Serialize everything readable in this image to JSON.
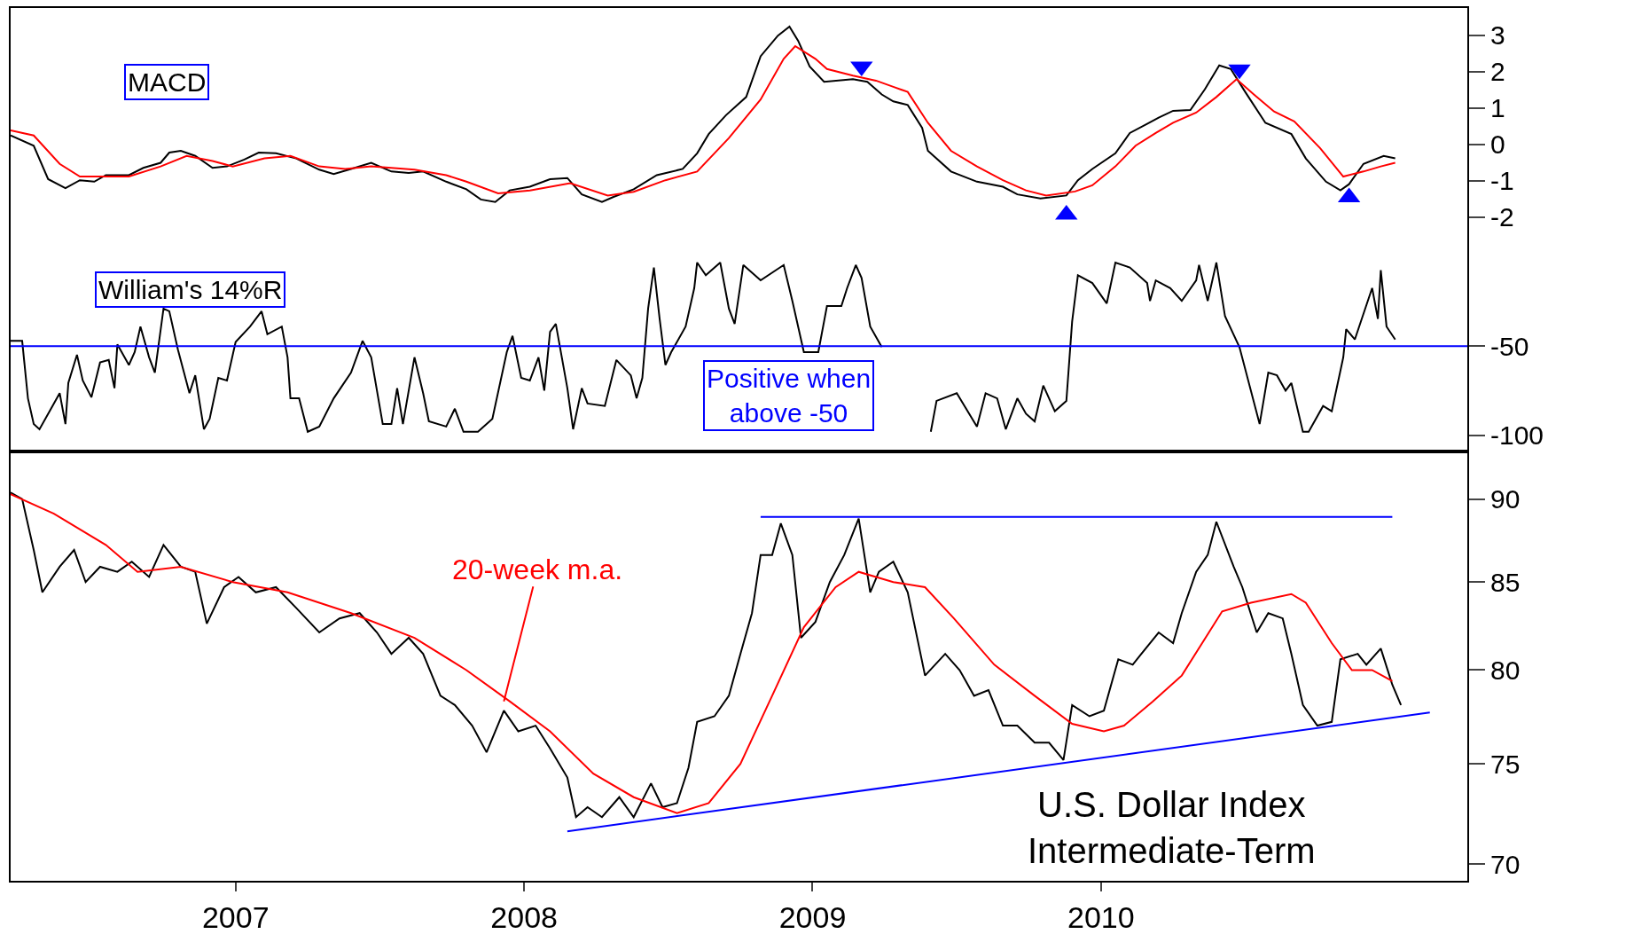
{
  "chart_data": [
    {
      "type": "line",
      "tick_labels": "y",
      "xlim": [
        2006.22,
        2011.27
      ],
      "ylim": [
        -3.0,
        3.75
      ],
      "xticks": [
        2007,
        2008,
        2009,
        2010
      ],
      "yticks": [
        -2,
        -1,
        0,
        1,
        2,
        3
      ],
      "annotations": [
        "MACD"
      ],
      "series": [
        {
          "color": "#000000",
          "x": [
            2006.22,
            2006.3,
            2006.35,
            2006.41,
            2006.46,
            2006.51,
            2006.55,
            2006.63,
            2006.68,
            2006.74,
            2006.77,
            2006.81,
            2006.86,
            2006.92,
            2006.97,
            2007.03,
            2007.08,
            2007.14,
            2007.21,
            2007.29,
            2007.34,
            2007.4,
            2007.47,
            2007.54,
            2007.6,
            2007.65,
            2007.73,
            2007.8,
            2007.85,
            2007.9,
            2007.95,
            2008.02,
            2008.09,
            2008.15,
            2008.2,
            2008.27,
            2008.31,
            2008.38,
            2008.46,
            2008.55,
            2008.6,
            2008.64,
            2008.7,
            2008.77,
            2008.82,
            2008.88,
            2008.92,
            2008.95,
            2008.99,
            2009.04,
            2009.14,
            2009.19,
            2009.24,
            2009.28,
            2009.33,
            2009.38,
            2009.4,
            2009.48,
            2009.57,
            2009.66,
            2009.71,
            2009.79,
            2009.88,
            2009.92,
            2009.97,
            2010.05,
            2010.1,
            2010.16,
            2010.2,
            2010.25,
            2010.31,
            2010.36,
            2010.41,
            2010.45,
            2010.5,
            2010.57,
            2010.66,
            2010.71,
            2010.78,
            2010.83,
            2010.86,
            2010.91,
            2010.98,
            2011.02
          ],
          "values": [
            0.24,
            -0.04,
            -0.96,
            -1.21,
            -0.99,
            -1.03,
            -0.85,
            -0.85,
            -0.65,
            -0.51,
            -0.23,
            -0.18,
            -0.32,
            -0.65,
            -0.61,
            -0.42,
            -0.23,
            -0.25,
            -0.39,
            -0.7,
            -0.82,
            -0.68,
            -0.51,
            -0.75,
            -0.79,
            -0.75,
            -1.03,
            -1.24,
            -1.52,
            -1.59,
            -1.27,
            -1.17,
            -0.96,
            -0.93,
            -1.38,
            -1.59,
            -1.45,
            -1.24,
            -0.85,
            -0.68,
            -0.25,
            0.28,
            0.8,
            1.3,
            2.42,
            2.99,
            3.24,
            2.85,
            2.14,
            1.72,
            1.79,
            1.72,
            1.37,
            1.18,
            1.08,
            0.45,
            -0.18,
            -0.75,
            -1.03,
            -1.17,
            -1.38,
            -1.49,
            -1.41,
            -0.99,
            -0.68,
            -0.25,
            0.31,
            0.56,
            0.73,
            0.92,
            0.94,
            1.51,
            2.17,
            2.07,
            1.44,
            0.59,
            0.28,
            -0.39,
            -1.03,
            -1.27,
            -1.1,
            -0.54,
            -0.32,
            -0.39
          ]
        },
        {
          "color": "#ff0000",
          "x": [
            2006.22,
            2006.3,
            2006.39,
            2006.46,
            2006.63,
            2006.74,
            2006.83,
            2006.92,
            2006.99,
            2007.1,
            2007.19,
            2007.29,
            2007.38,
            2007.47,
            2007.62,
            2007.73,
            2007.8,
            2007.91,
            2008.02,
            2008.16,
            2008.29,
            2008.38,
            2008.49,
            2008.6,
            2008.71,
            2008.82,
            2008.9,
            2008.94,
            2009.01,
            2009.05,
            2009.14,
            2009.22,
            2009.28,
            2009.33,
            2009.4,
            2009.48,
            2009.57,
            2009.66,
            2009.74,
            2009.81,
            2009.91,
            2009.97,
            2010.05,
            2010.12,
            2010.19,
            2010.25,
            2010.33,
            2010.4,
            2010.47,
            2010.53,
            2010.6,
            2010.67,
            2010.76,
            2010.84,
            2010.91,
            2010.97,
            2011.02
          ],
          "values": [
            0.38,
            0.24,
            -0.54,
            -0.89,
            -0.89,
            -0.61,
            -0.32,
            -0.46,
            -0.61,
            -0.39,
            -0.32,
            -0.61,
            -0.68,
            -0.61,
            -0.7,
            -0.85,
            -1.03,
            -1.35,
            -1.27,
            -1.07,
            -1.41,
            -1.31,
            -0.99,
            -0.75,
            0.17,
            1.23,
            2.35,
            2.7,
            2.35,
            2.07,
            1.89,
            1.75,
            1.58,
            1.44,
            0.59,
            -0.18,
            -0.61,
            -0.99,
            -1.27,
            -1.41,
            -1.3,
            -1.13,
            -0.61,
            -0.04,
            0.31,
            0.59,
            0.87,
            1.3,
            1.79,
            1.37,
            0.9,
            0.63,
            -0.11,
            -0.89,
            -0.75,
            -0.61,
            -0.51
          ]
        },
        {
          "type": "scatter",
          "marker": "triangle-down",
          "color": "#0000ff",
          "x": [
            2009.17,
            2010.48
          ],
          "values": [
            2.14,
            2.06
          ]
        },
        {
          "type": "scatter",
          "marker": "triangle",
          "color": "#0000ff",
          "x": [
            2009.88,
            2010.86
          ],
          "values": [
            -1.94,
            -1.46
          ]
        }
      ]
    },
    {
      "type": "line",
      "tick_labels": "y",
      "xlim": [
        2006.22,
        2011.27
      ],
      "ylim": [
        -109,
        2
      ],
      "xticks": [
        2007,
        2008,
        2009,
        2010
      ],
      "yticks": [
        -100,
        -50
      ],
      "annotations": [
        "William's 14%R",
        "Positive when\nabove -50"
      ],
      "ref_lines": [
        {
          "axis": "y",
          "value": -50,
          "color": "#0000ff"
        }
      ],
      "series": [
        {
          "color": "#000000",
          "x": [
            2006.22,
            2006.26,
            2006.28,
            2006.3,
            2006.32,
            2006.36,
            2006.39,
            2006.41,
            2006.42,
            2006.45,
            2006.47,
            2006.5,
            2006.53,
            2006.56,
            2006.58,
            2006.59,
            2006.63,
            2006.65,
            2006.67,
            2006.7,
            2006.72,
            2006.75,
            2006.77,
            2006.8,
            2006.84,
            2006.86,
            2006.89,
            2006.91,
            2006.94,
            2006.97,
            2007.0,
            2007.05,
            2007.09,
            2007.11,
            2007.16,
            2007.18,
            2007.19,
            2007.22,
            2007.25,
            2007.29,
            2007.34,
            2007.4,
            2007.44,
            2007.47,
            2007.51,
            2007.54,
            2007.56,
            2007.58,
            2007.62,
            2007.65,
            2007.67,
            2007.73,
            2007.76,
            2007.79,
            2007.84,
            2007.89,
            2007.94,
            2007.96,
            2007.99,
            2008.02,
            2008.05,
            2008.07,
            2008.09,
            2008.11,
            2008.15,
            2008.17,
            2008.2,
            2008.22,
            2008.28,
            2008.32,
            2008.37,
            2008.39,
            2008.41,
            2008.43,
            2008.45,
            2008.47,
            2008.49,
            2008.51,
            2008.56,
            2008.59,
            2008.6,
            2008.63,
            2008.68,
            2008.71,
            2008.73,
            2008.76,
            2008.82,
            2008.9,
            2008.93,
            2008.97,
            2009.02,
            2009.05,
            2009.1,
            2009.12,
            2009.15,
            2009.17,
            2009.2,
            2009.24,
            2009.32,
            2009.41,
            2009.43,
            2009.5,
            2009.57,
            2009.6,
            2009.64,
            2009.67,
            2009.71,
            2009.74,
            2009.77,
            2009.8,
            2009.84,
            2009.88,
            2009.9,
            2009.92,
            2009.97,
            2010.02,
            2010.05,
            2010.1,
            2010.16,
            2010.17,
            2010.19,
            2010.24,
            2010.28,
            2010.33,
            2010.34,
            2010.37,
            2010.4,
            2010.43,
            2010.48,
            2010.55,
            2010.58,
            2010.61,
            2010.64,
            2010.66,
            2010.7,
            2010.72,
            2010.77,
            2010.8,
            2010.84,
            2010.85,
            2010.88,
            2010.94,
            2010.96,
            2010.97,
            2010.99,
            2011.02
          ],
          "values": [
            -47.1,
            -47.1,
            -79.3,
            -93.7,
            -96.6,
            -85.1,
            -76.4,
            -93.7,
            -70.7,
            -54.9,
            -69.3,
            -78.7,
            -59.2,
            -57.8,
            -73.6,
            -49.1,
            -60.6,
            -53.4,
            -39.1,
            -56.3,
            -64.9,
            -29.0,
            -30.5,
            -52.0,
            -76.4,
            -66.4,
            -96.6,
            -90.8,
            -67.8,
            -69.3,
            -47.7,
            -39.1,
            -30.5,
            -43.4,
            -39.1,
            -56.3,
            -79.3,
            -79.3,
            -98.0,
            -95.1,
            -79.3,
            -64.9,
            -47.1,
            -56.3,
            -93.7,
            -93.7,
            -73.6,
            -93.7,
            -56.3,
            -76.4,
            -92.2,
            -95.1,
            -85.1,
            -98.0,
            -98.0,
            -90.8,
            -53.4,
            -44.3,
            -67.8,
            -69.3,
            -56.3,
            -75.0,
            -42.0,
            -37.6,
            -73.6,
            -96.6,
            -73.6,
            -82.2,
            -83.6,
            -57.8,
            -66.4,
            -79.3,
            -67.8,
            -29.0,
            -6.0,
            -34.8,
            -60.6,
            -53.4,
            -39.1,
            -17.5,
            -3.2,
            -10.3,
            -3.2,
            -29.0,
            -37.6,
            -4.6,
            -13.2,
            -4.6,
            -24.7,
            -53.4,
            -53.4,
            -27.6,
            -27.6,
            -17.5,
            -4.6,
            -11.8,
            -39.1,
            -50.6,
            null,
            -98.0,
            -80.7,
            -76.4,
            -95.1,
            -76.4,
            -79.3,
            -96.6,
            -79.3,
            -87.9,
            -92.2,
            -72.1,
            -86.5,
            -80.7,
            -36.2,
            -10.3,
            -14.7,
            -26.1,
            -3.2,
            -6.0,
            -14.7,
            -24.7,
            -13.2,
            -17.5,
            -24.7,
            -13.2,
            -4.6,
            -24.7,
            -3.2,
            -33.3,
            -50.6,
            -93.7,
            -64.9,
            -66.4,
            -75.0,
            -70.7,
            -98.0,
            -98.0,
            -83.6,
            -86.5,
            -56.3,
            -40.5,
            -46.3,
            -17.5,
            -34.8,
            -7.5,
            -39.1,
            -46.3
          ]
        }
      ]
    },
    {
      "type": "line",
      "log": true,
      "xlim": [
        2006.22,
        2011.27
      ],
      "ylim": [
        69.2,
        93
      ],
      "xticks": [
        2007,
        2008,
        2009,
        2010
      ],
      "yticks": [
        70,
        75,
        80,
        85,
        90
      ],
      "annotations": [
        {
          "text": "20-week m.a.",
          "x": 2007.93,
          "y": 78.3
        },
        "U.S. Dollar Index\nIntermediate-Term"
      ],
      "series": [
        {
          "color": "#000000",
          "x": [
            2006.22,
            2006.26,
            2006.3,
            2006.33,
            2006.39,
            2006.44,
            2006.48,
            2006.53,
            2006.59,
            2006.64,
            2006.7,
            2006.75,
            2006.81,
            2006.86,
            2006.9,
            2006.96,
            2007.01,
            2007.07,
            2007.14,
            2007.21,
            2007.29,
            2007.36,
            2007.43,
            2007.49,
            2007.54,
            2007.6,
            2007.65,
            2007.71,
            2007.76,
            2007.82,
            2007.87,
            2007.93,
            2007.98,
            2008.04,
            2008.09,
            2008.15,
            2008.18,
            2008.22,
            2008.27,
            2008.33,
            2008.38,
            2008.44,
            2008.48,
            2008.53,
            2008.57,
            2008.6,
            2008.66,
            2008.71,
            2008.75,
            2008.79,
            2008.82,
            2008.86,
            2008.89,
            2008.93,
            2008.96,
            2009.01,
            2009.06,
            2009.11,
            2009.16,
            2009.2,
            2009.23,
            2009.28,
            2009.33,
            2009.39,
            2009.46,
            2009.51,
            2009.56,
            2009.61,
            2009.66,
            2009.71,
            2009.77,
            2009.82,
            2009.87,
            2009.9,
            2009.96,
            2010.01,
            2010.06,
            2010.11,
            2010.14,
            2010.2,
            2010.25,
            2010.28,
            2010.33,
            2010.37,
            2010.4,
            2010.46,
            2010.49,
            2010.54,
            2010.58,
            2010.63,
            2010.66,
            2010.7,
            2010.75,
            2010.8,
            2010.83,
            2010.89,
            2010.92,
            2010.97,
            2011.01,
            2011.04
          ],
          "values": [
            90.4,
            90,
            86.9,
            84.4,
            85.9,
            86.9,
            85,
            85.9,
            85.6,
            86.2,
            85.3,
            87.2,
            85.9,
            85.6,
            82.6,
            84.7,
            85.3,
            84.4,
            84.7,
            83.5,
            82.1,
            82.9,
            83.2,
            82.1,
            80.9,
            81.8,
            80.9,
            78.6,
            78.1,
            77,
            75.6,
            77.8,
            76.7,
            77,
            75.8,
            74.3,
            72.3,
            72.8,
            72.3,
            73.3,
            72.3,
            74,
            72.8,
            73,
            74.8,
            77.2,
            77.5,
            78.6,
            80.9,
            83.2,
            86.6,
            86.6,
            88.5,
            86.6,
            81.8,
            82.7,
            85,
            86.6,
            88.8,
            84.4,
            85.6,
            86.2,
            84.4,
            79.7,
            80.9,
            80,
            78.6,
            78.9,
            77,
            77,
            76.1,
            76.1,
            75.2,
            78.1,
            77.5,
            77.8,
            80.6,
            80.3,
            80.9,
            82.1,
            81.5,
            83.2,
            85.6,
            86.6,
            88.6,
            85.9,
            84.7,
            82.1,
            83.2,
            82.9,
            80.9,
            78.1,
            77,
            77.2,
            80.6,
            80.9,
            80.3,
            81.2,
            79.2,
            78.1
          ]
        },
        {
          "color": "#ff0000",
          "x": [
            2006.22,
            2006.37,
            2006.55,
            2006.66,
            2006.81,
            2006.99,
            2007.18,
            2007.4,
            2007.62,
            2007.8,
            2007.95,
            2008.09,
            2008.24,
            2008.38,
            2008.53,
            2008.64,
            2008.75,
            2008.86,
            2008.97,
            2009.08,
            2009.16,
            2009.28,
            2009.39,
            2009.49,
            2009.63,
            2009.77,
            2009.9,
            2010.01,
            2010.08,
            2010.18,
            2010.28,
            2010.42,
            2010.52,
            2010.66,
            2010.71,
            2010.8,
            2010.87,
            2010.94,
            2011.01
          ],
          "values": [
            90.3,
            89.1,
            87.2,
            85.6,
            85.9,
            85,
            84.4,
            83.2,
            81.8,
            80,
            78.3,
            76.7,
            74.5,
            73.3,
            72.5,
            73,
            75,
            78.6,
            82.4,
            84.7,
            85.6,
            85,
            84.7,
            82.9,
            80.3,
            78.6,
            77.1,
            76.7,
            77,
            78.3,
            79.7,
            83.3,
            83.8,
            84.3,
            83.8,
            81.5,
            80,
            80,
            79.4
          ]
        },
        {
          "color": "#0000ff",
          "x": [
            2008.82,
            2011.01
          ],
          "values": [
            88.9,
            88.9
          ]
        },
        {
          "color": "#0000ff",
          "x": [
            2008.15,
            2011.14
          ],
          "values": [
            71.6,
            77.7
          ]
        }
      ]
    }
  ]
}
